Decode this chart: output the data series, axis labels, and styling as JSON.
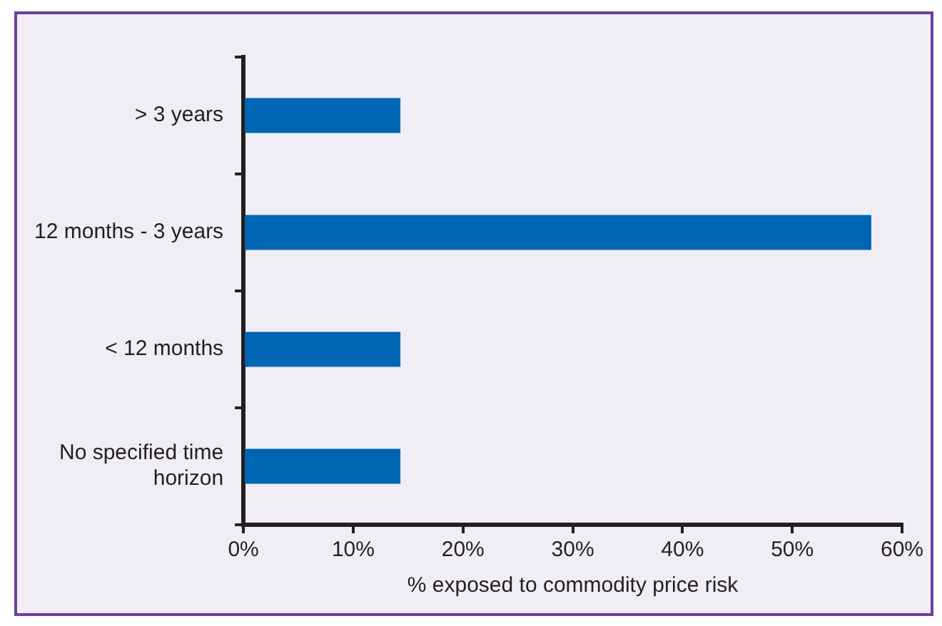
{
  "chart_data": {
    "type": "bar",
    "orientation": "horizontal",
    "xlabel": "% exposed to commodity price risk",
    "categories": [
      "> 3 years",
      "12 months - 3 years",
      "< 12 months",
      "No specified time horizon"
    ],
    "values": [
      14.3,
      57.2,
      14.3,
      14.3
    ],
    "color": "#0066b3",
    "xlim": [
      0,
      60
    ],
    "xticks": [
      {
        "value": 0,
        "label": "0%"
      },
      {
        "value": 10,
        "label": "10%"
      },
      {
        "value": 20,
        "label": "20%"
      },
      {
        "value": 30,
        "label": "30%"
      },
      {
        "value": 40,
        "label": "40%"
      },
      {
        "value": 50,
        "label": "50%"
      },
      {
        "value": 60,
        "label": "60%"
      }
    ],
    "grid": false,
    "legend": false
  }
}
